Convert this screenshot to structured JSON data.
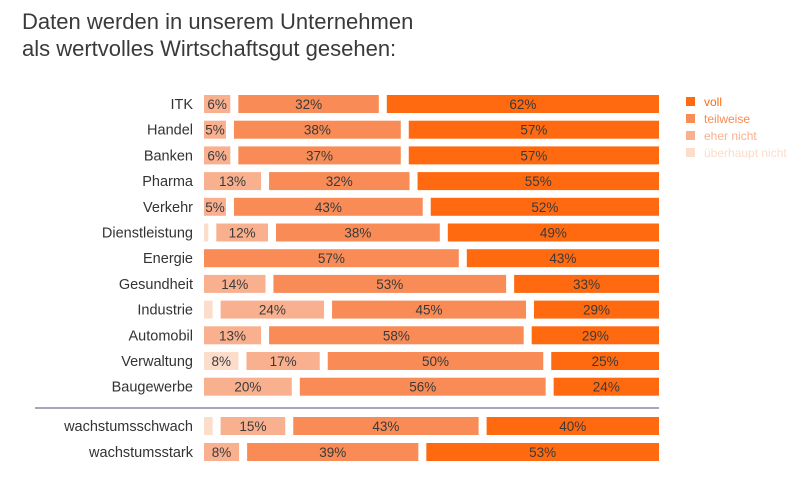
{
  "chart_data": {
    "type": "bar",
    "stacked": true,
    "orientation": "horizontal",
    "title_lines": [
      "Daten werden in unserem Unternehmen",
      "als wertvolles Wirtschaftsgut gesehen:"
    ],
    "legend_position": "right",
    "series_names": [
      "überhaupt nicht",
      "eher nicht",
      "teilweise",
      "voll"
    ],
    "legend": [
      {
        "name": "voll",
        "color": "#ff6a10"
      },
      {
        "name": "teilweise",
        "color": "#f88b56"
      },
      {
        "name": "eher nicht",
        "color": "#f9b08f"
      },
      {
        "name": "überhaupt nicht",
        "color": "#fcdccb"
      }
    ],
    "colors": [
      "#fcdccb",
      "#f9b08f",
      "#f88b56",
      "#ff6a10"
    ],
    "groups": [
      {
        "categories": [
          "ITK",
          "Handel",
          "Banken",
          "Pharma",
          "Verkehr",
          "Dienstleistung",
          "Energie",
          "Gesundheit",
          "Industrie",
          "Automobil",
          "Verwaltung",
          "Baugewerbe"
        ],
        "values": [
          [
            0,
            6,
            32,
            62
          ],
          [
            0,
            5,
            38,
            57
          ],
          [
            0,
            6,
            37,
            57
          ],
          [
            0,
            13,
            32,
            55
          ],
          [
            0,
            5,
            43,
            52
          ],
          [
            1,
            12,
            38,
            49
          ],
          [
            0,
            0,
            57,
            43
          ],
          [
            0,
            14,
            53,
            33
          ],
          [
            2,
            24,
            45,
            29
          ],
          [
            0,
            13,
            58,
            29
          ],
          [
            8,
            17,
            50,
            25
          ],
          [
            0,
            20,
            56,
            24
          ]
        ]
      },
      {
        "categories": [
          "wachstumsschwach",
          "wachstumsstark"
        ],
        "values": [
          [
            2,
            15,
            43,
            40
          ],
          [
            0,
            8,
            39,
            53
          ]
        ]
      }
    ],
    "unlabeled_values": [
      [
        5,
        0
      ],
      [
        8,
        0
      ],
      [
        0,
        0
      ]
    ]
  }
}
